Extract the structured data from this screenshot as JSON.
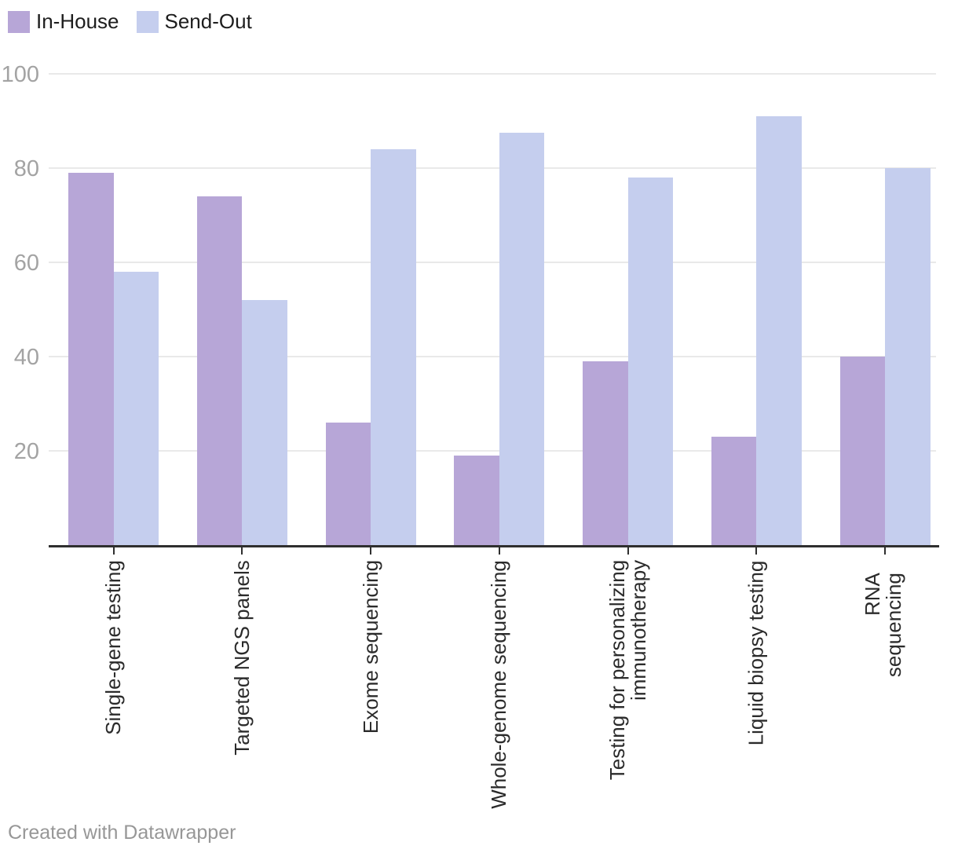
{
  "chart_data": {
    "type": "bar",
    "title": "",
    "categories": [
      "Single-gene testing",
      "Targeted NGS panels",
      "Exome sequencing",
      "Whole-genome sequencing",
      "Testing for personalizing\nimmunotherapy",
      "Liquid biopsy testing",
      "RNA sequencing"
    ],
    "series": [
      {
        "name": "In-House",
        "color": "#b7a6d7",
        "values": [
          79,
          74,
          26,
          19,
          39,
          23,
          40
        ]
      },
      {
        "name": "Send-Out",
        "color": "#c5ceee",
        "values": [
          58,
          52,
          84,
          87.5,
          78,
          91,
          80
        ]
      }
    ],
    "xlabel": "",
    "ylabel": "",
    "ylim": [
      0,
      100
    ],
    "yticks": [
      20,
      40,
      60,
      80,
      100
    ],
    "grid": true,
    "legend_position": "top-left"
  },
  "colors": {
    "background": "#ffffff",
    "gridline": "#e9e9e9",
    "axis": "#2f2f2f",
    "y_tick_label": "#a3a3a3",
    "x_label": "#2b2b2b",
    "footer_text": "#979797"
  },
  "footer": {
    "text": "Created with Datawrapper"
  }
}
